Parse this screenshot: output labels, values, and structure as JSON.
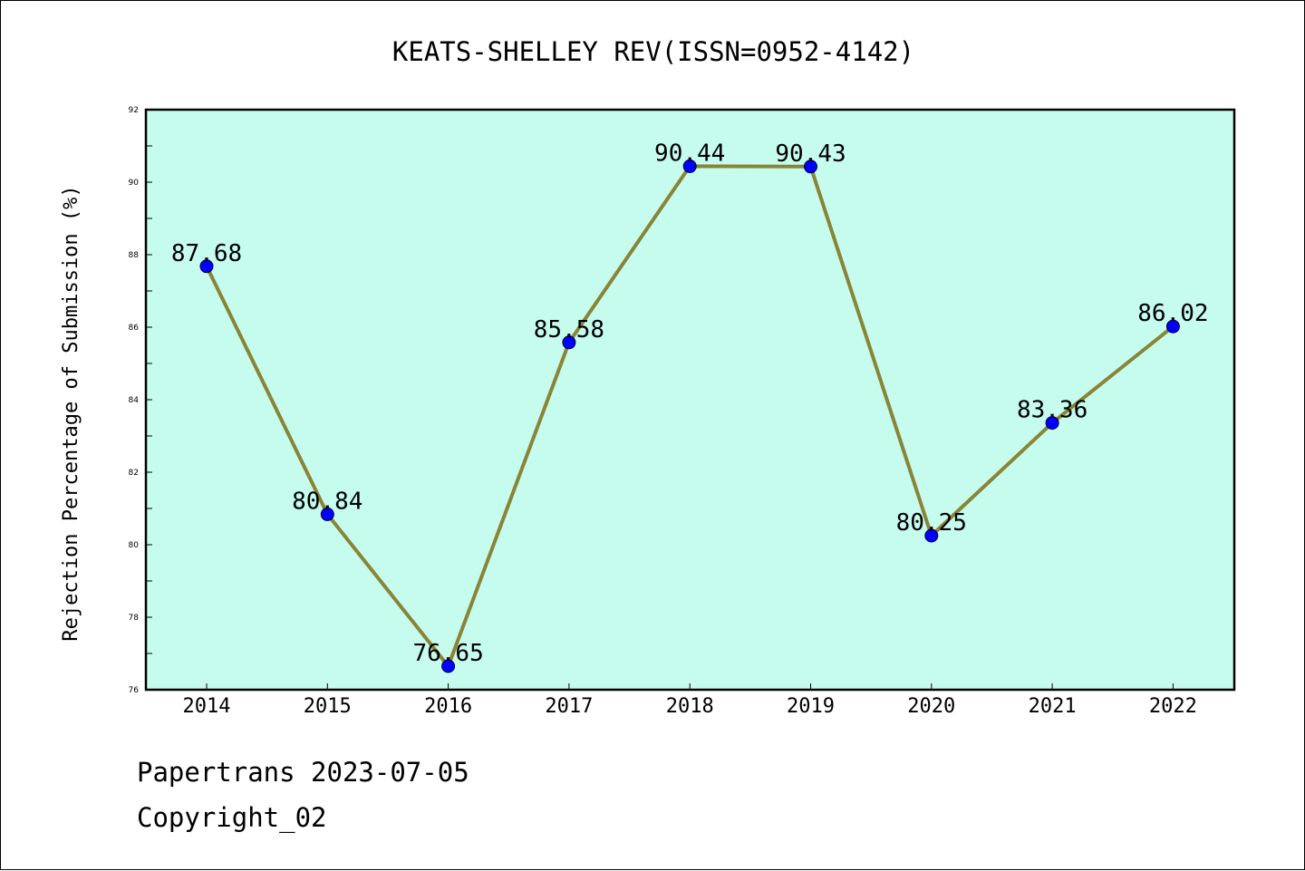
{
  "chart_data": {
    "type": "line",
    "title": "KEATS-SHELLEY REV(ISSN=0952-4142)",
    "xlabel": "",
    "ylabel": "Rejection Percentage of Submission (%)",
    "categories": [
      "2014",
      "2015",
      "2016",
      "2017",
      "2018",
      "2019",
      "2020",
      "2021",
      "2022"
    ],
    "series": [
      {
        "values": [
          87.68,
          80.84,
          76.65,
          85.58,
          90.44,
          90.43,
          80.25,
          83.36,
          86.02
        ],
        "labels": [
          "87.68",
          "80.84",
          "76.65",
          "85.58",
          "90.44",
          "90.43",
          "80.25",
          "83.36",
          "86.02"
        ]
      }
    ],
    "ylim": [
      76,
      92
    ],
    "yticks": [
      "76",
      "78",
      "80",
      "82",
      "84",
      "86",
      "88",
      "90",
      "92"
    ],
    "grid": false,
    "colors": {
      "plot_background": "#c6fcee",
      "line": "#8a8436",
      "marker": "#0000ff"
    }
  },
  "footer": {
    "line1": "Papertrans 2023-07-05",
    "line2": "Copyright_02"
  }
}
